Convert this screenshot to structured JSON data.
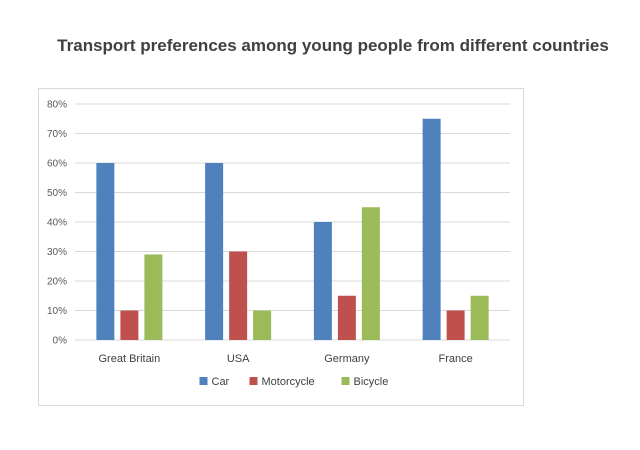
{
  "chart_data": {
    "type": "bar",
    "title": "Transport preferences among young people from different countries",
    "xlabel": "",
    "ylabel": "",
    "categories": [
      "Great Britain",
      "USA",
      "Germany",
      "France"
    ],
    "series": [
      {
        "name": "Car",
        "color": "#4f81bd",
        "values": [
          60,
          60,
          40,
          75
        ]
      },
      {
        "name": "Motorcycle",
        "color": "#c0504d",
        "values": [
          10,
          30,
          15,
          10
        ]
      },
      {
        "name": "Bicycle",
        "color": "#9bbb59",
        "values": [
          29,
          10,
          45,
          15
        ]
      }
    ],
    "ylim": [
      0,
      80
    ],
    "yticks": [
      0,
      10,
      20,
      30,
      40,
      50,
      60,
      70,
      80
    ],
    "ytick_labels": [
      "0%",
      "10%",
      "20%",
      "30%",
      "40%",
      "50%",
      "60%",
      "70%",
      "80%"
    ],
    "grid": true,
    "legend_position": "bottom"
  },
  "colors": {
    "gridline": "#d9d9d9",
    "frame": "#d9d9d9"
  }
}
